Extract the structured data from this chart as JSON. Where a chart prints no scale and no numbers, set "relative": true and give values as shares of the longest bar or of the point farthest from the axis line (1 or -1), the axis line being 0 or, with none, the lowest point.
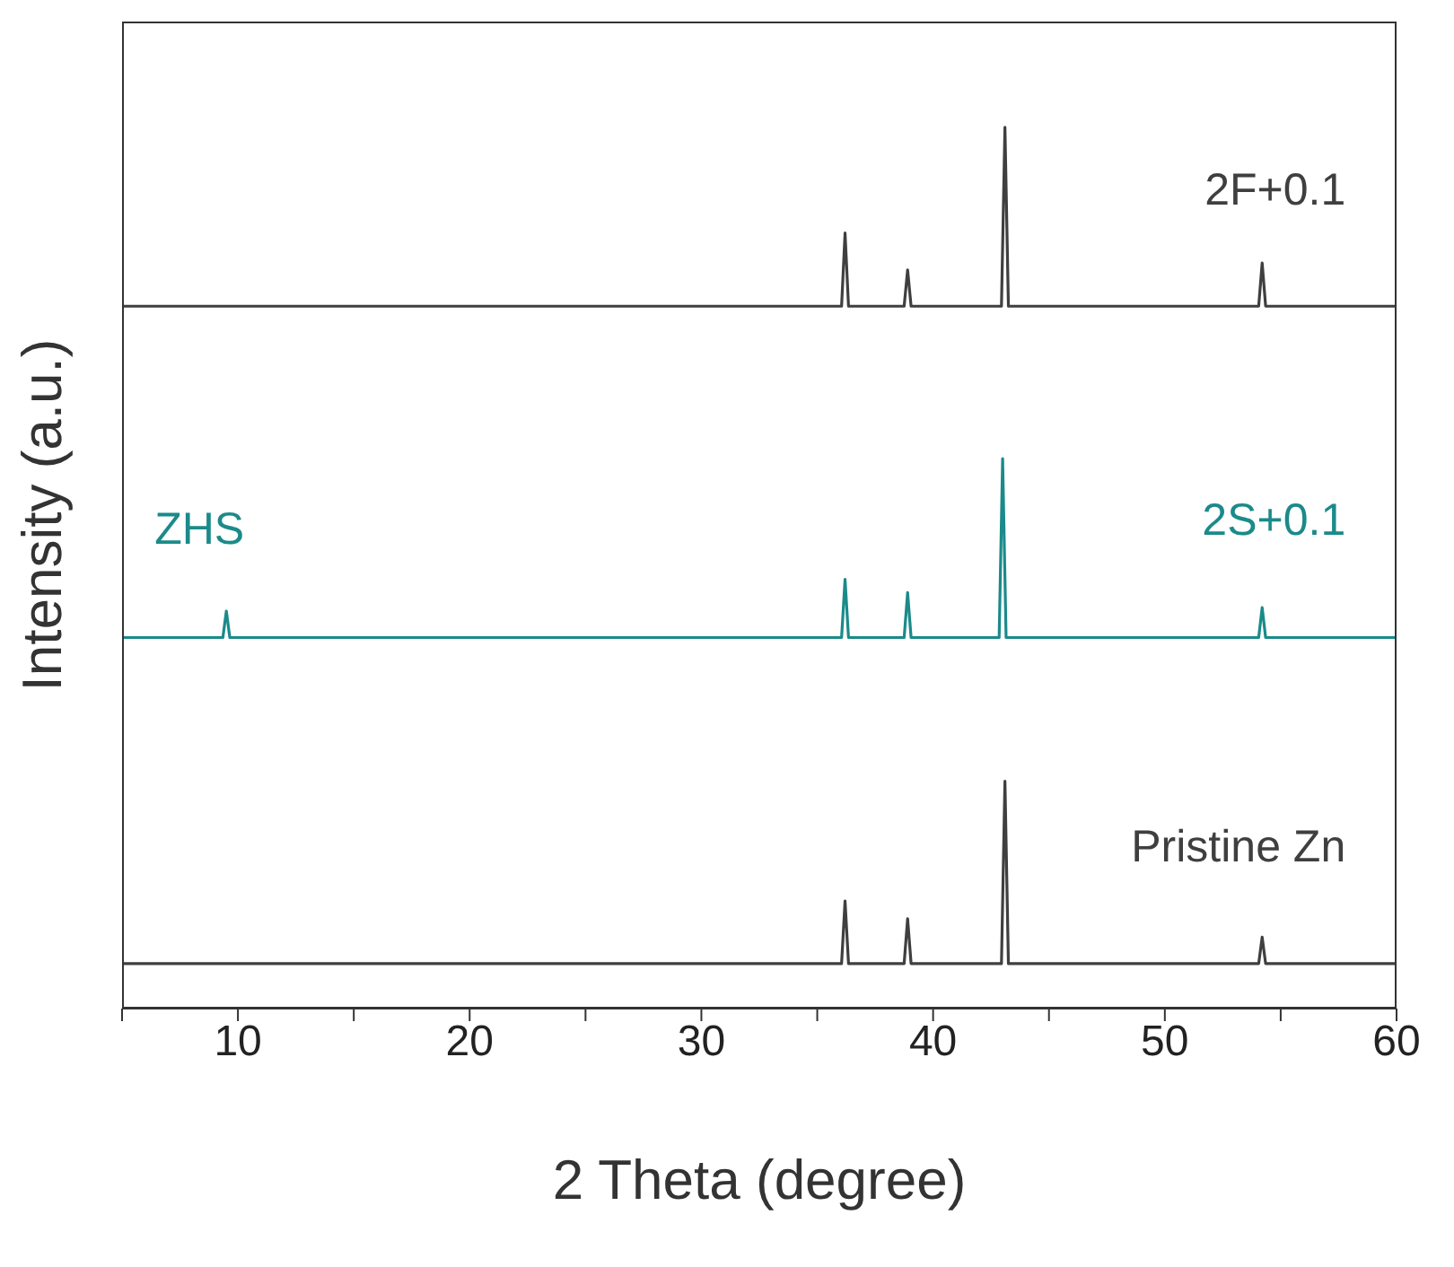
{
  "chart_data": {
    "type": "line",
    "relative": true,
    "xlabel": "2 Theta (degree)",
    "ylabel": "Intensity (a.u.)",
    "xlim": [
      5,
      60
    ],
    "xticks": [
      {
        "value": 5,
        "label": null
      },
      10,
      {
        "value": 15,
        "label": null
      },
      20,
      {
        "value": 25,
        "label": null
      },
      30,
      {
        "value": 35,
        "label": null
      },
      40,
      {
        "value": 45,
        "label": null
      },
      50,
      {
        "value": 55,
        "label": null
      },
      60
    ],
    "grid": false,
    "legend": false,
    "marker": "none",
    "line_style": "solid",
    "series": [
      {
        "name": "Pristine Zn",
        "color": "#3f3f3f",
        "x": [
          5,
          36.05,
          36.2,
          36.35,
          38.75,
          38.9,
          39.05,
          42.95,
          43.1,
          43.25,
          54.05,
          54.2,
          54.35,
          60
        ],
        "values": [
          0.051,
          0.051,
          0.122,
          0.051,
          0.051,
          0.102,
          0.051,
          0.051,
          0.258,
          0.051,
          0.051,
          0.081,
          0.051,
          0.051
        ]
      },
      {
        "name": "2S+0.1",
        "color": "#1b8a8a",
        "x": [
          5,
          9.35,
          9.5,
          9.65,
          36.05,
          36.2,
          36.35,
          38.75,
          38.9,
          39.05,
          42.85,
          43.0,
          43.15,
          54.05,
          54.2,
          54.35,
          60
        ],
        "values": [
          0.421,
          0.421,
          0.451,
          0.421,
          0.421,
          0.487,
          0.421,
          0.421,
          0.472,
          0.421,
          0.421,
          0.624,
          0.421,
          0.421,
          0.455,
          0.421,
          0.421
        ]
      },
      {
        "name": "2F+0.1",
        "color": "#3f3f3f",
        "x": [
          5,
          36.05,
          36.2,
          36.35,
          38.75,
          38.9,
          39.05,
          42.95,
          43.1,
          43.25,
          54.05,
          54.2,
          54.35,
          60
        ],
        "values": [
          0.797,
          0.797,
          0.88,
          0.797,
          0.797,
          0.838,
          0.797,
          0.797,
          1.0,
          0.797,
          0.797,
          0.846,
          0.797,
          0.797
        ]
      }
    ],
    "annotations": [
      {
        "text": "ZHS",
        "x": 9.5,
        "y": 0.451
      }
    ]
  }
}
